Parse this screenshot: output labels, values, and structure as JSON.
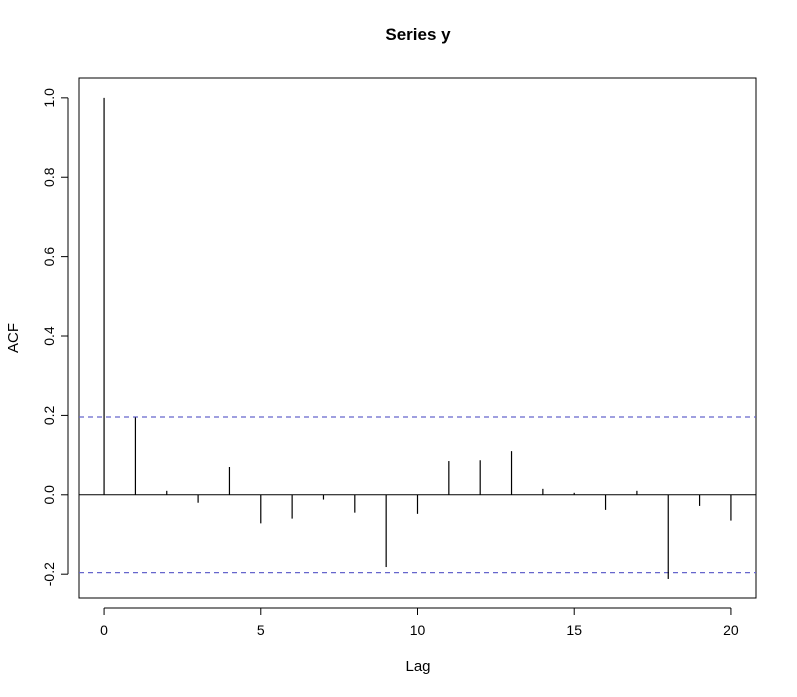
{
  "chart_data": {
    "type": "bar",
    "title": "Series  y",
    "xlabel": "Lag",
    "ylabel": "ACF",
    "xlim": [
      -0.8,
      20.8
    ],
    "ylim": [
      -0.26,
      1.05
    ],
    "x": [
      0,
      1,
      2,
      3,
      4,
      5,
      6,
      7,
      8,
      9,
      10,
      11,
      12,
      13,
      14,
      15,
      16,
      17,
      18,
      19,
      20
    ],
    "values": [
      1.0,
      0.195,
      0.01,
      -0.02,
      0.07,
      -0.072,
      -0.06,
      -0.012,
      -0.045,
      -0.182,
      -0.048,
      0.085,
      0.087,
      0.11,
      0.015,
      0.005,
      -0.038,
      0.01,
      -0.212,
      -0.028,
      -0.065
    ],
    "confidence_bound": 0.196,
    "confidence_line_color": "#6666cc",
    "x_ticks": [
      0,
      5,
      10,
      15,
      20
    ],
    "x_tick_labels": [
      "0",
      "5",
      "10",
      "15",
      "20"
    ],
    "y_ticks": [
      -0.2,
      0.0,
      0.2,
      0.4,
      0.6,
      0.8,
      1.0
    ],
    "y_tick_labels": [
      "-0.2",
      "0.0",
      "0.2",
      "0.4",
      "0.6",
      "0.8",
      "1.0"
    ],
    "grid": false
  }
}
